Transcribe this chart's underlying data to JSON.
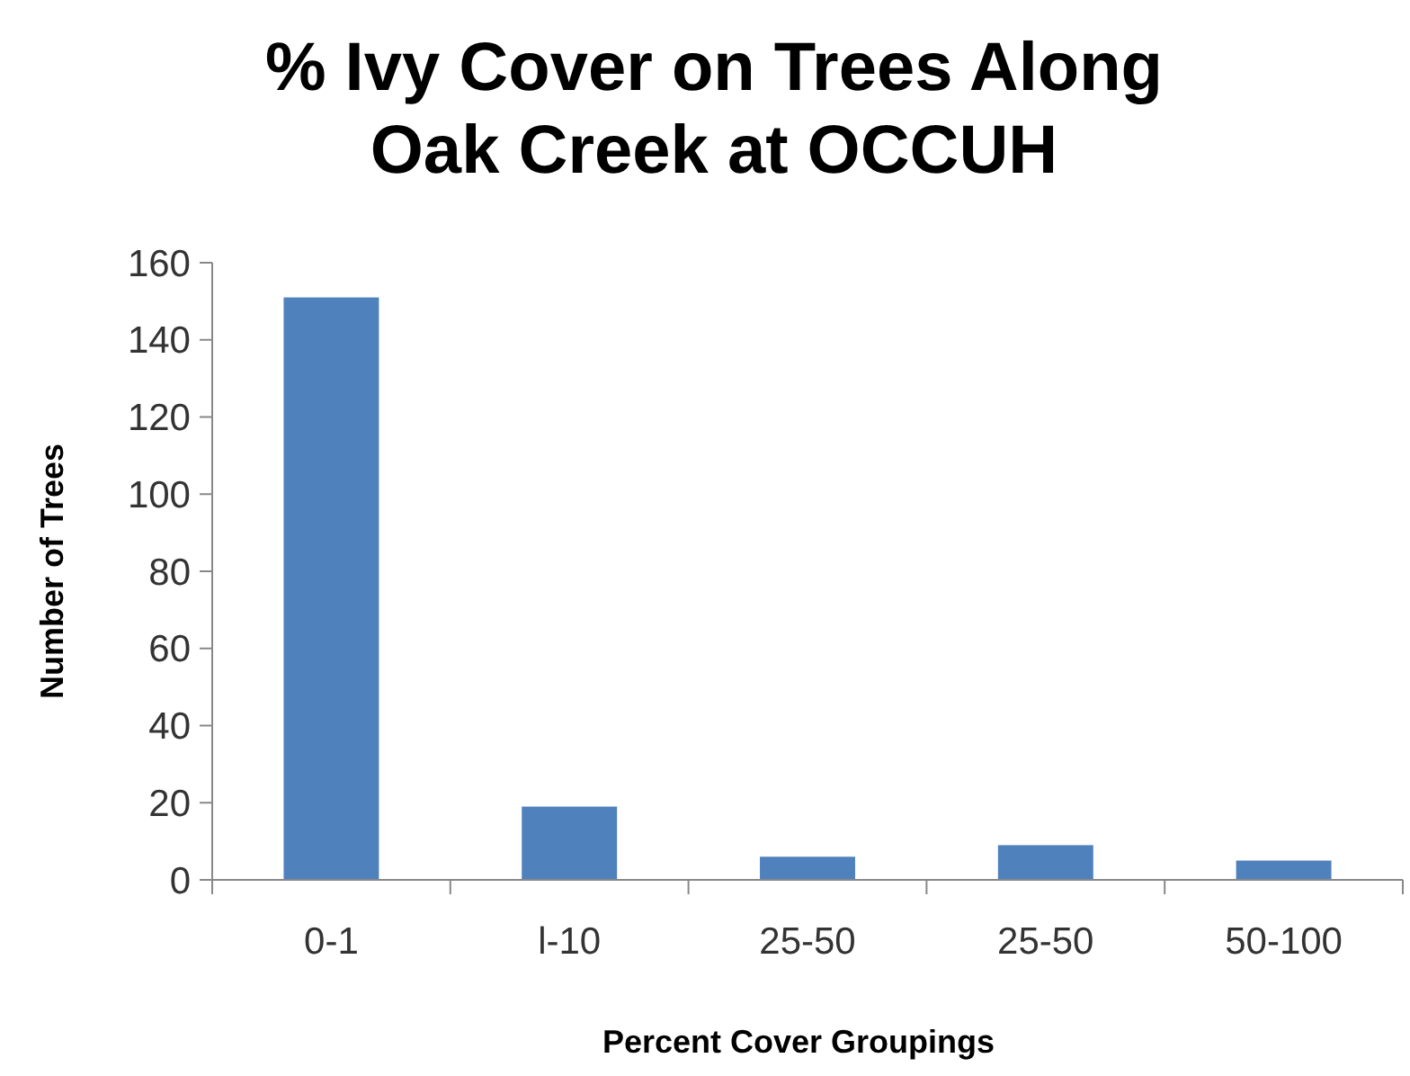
{
  "chart_data": {
    "type": "bar",
    "title": "% Ivy Cover on Trees Along Oak Creek at OCCUH",
    "xlabel": "Percent Cover Groupings",
    "ylabel": "Number of Trees",
    "categories": [
      "0-1",
      "l-10",
      "25-50",
      "25-50",
      "50-100"
    ],
    "values": [
      151,
      19,
      6,
      9,
      5
    ],
    "color": "#4f81bd",
    "ylim": [
      0,
      160
    ],
    "yticks": [
      0,
      20,
      40,
      60,
      80,
      100,
      120,
      140,
      160
    ],
    "grid": false
  }
}
